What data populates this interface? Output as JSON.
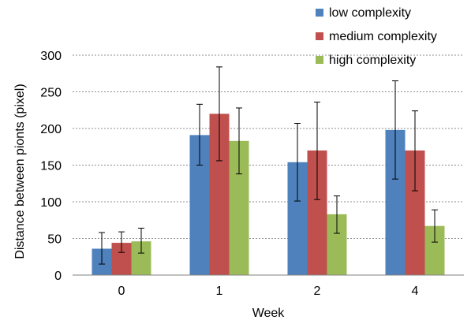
{
  "chart_data": {
    "type": "bar",
    "title": "",
    "xlabel": "Week",
    "ylabel": "Distance between pionts (pixel)",
    "ylim": [
      0,
      300
    ],
    "yticks": [
      0,
      50,
      100,
      150,
      200,
      250,
      300
    ],
    "grid": true,
    "legend_position": "top-right",
    "categories": [
      "0",
      "1",
      "2",
      "4"
    ],
    "series": [
      {
        "name": "low complexity",
        "color": "#4f81bd",
        "values": [
          36,
          191,
          154,
          198
        ],
        "err_low": [
          15,
          150,
          101,
          131
        ],
        "err_high": [
          58,
          233,
          207,
          265
        ]
      },
      {
        "name": "medium complexity",
        "color": "#c0504d",
        "values": [
          44,
          220,
          170,
          170
        ],
        "err_low": [
          31,
          156,
          103,
          115
        ],
        "err_high": [
          59,
          284,
          236,
          224
        ]
      },
      {
        "name": "high complexity",
        "color": "#9bbb59",
        "values": [
          46,
          183,
          83,
          67
        ],
        "err_low": [
          30,
          138,
          57,
          45
        ],
        "err_high": [
          64,
          228,
          108,
          89
        ]
      }
    ]
  }
}
